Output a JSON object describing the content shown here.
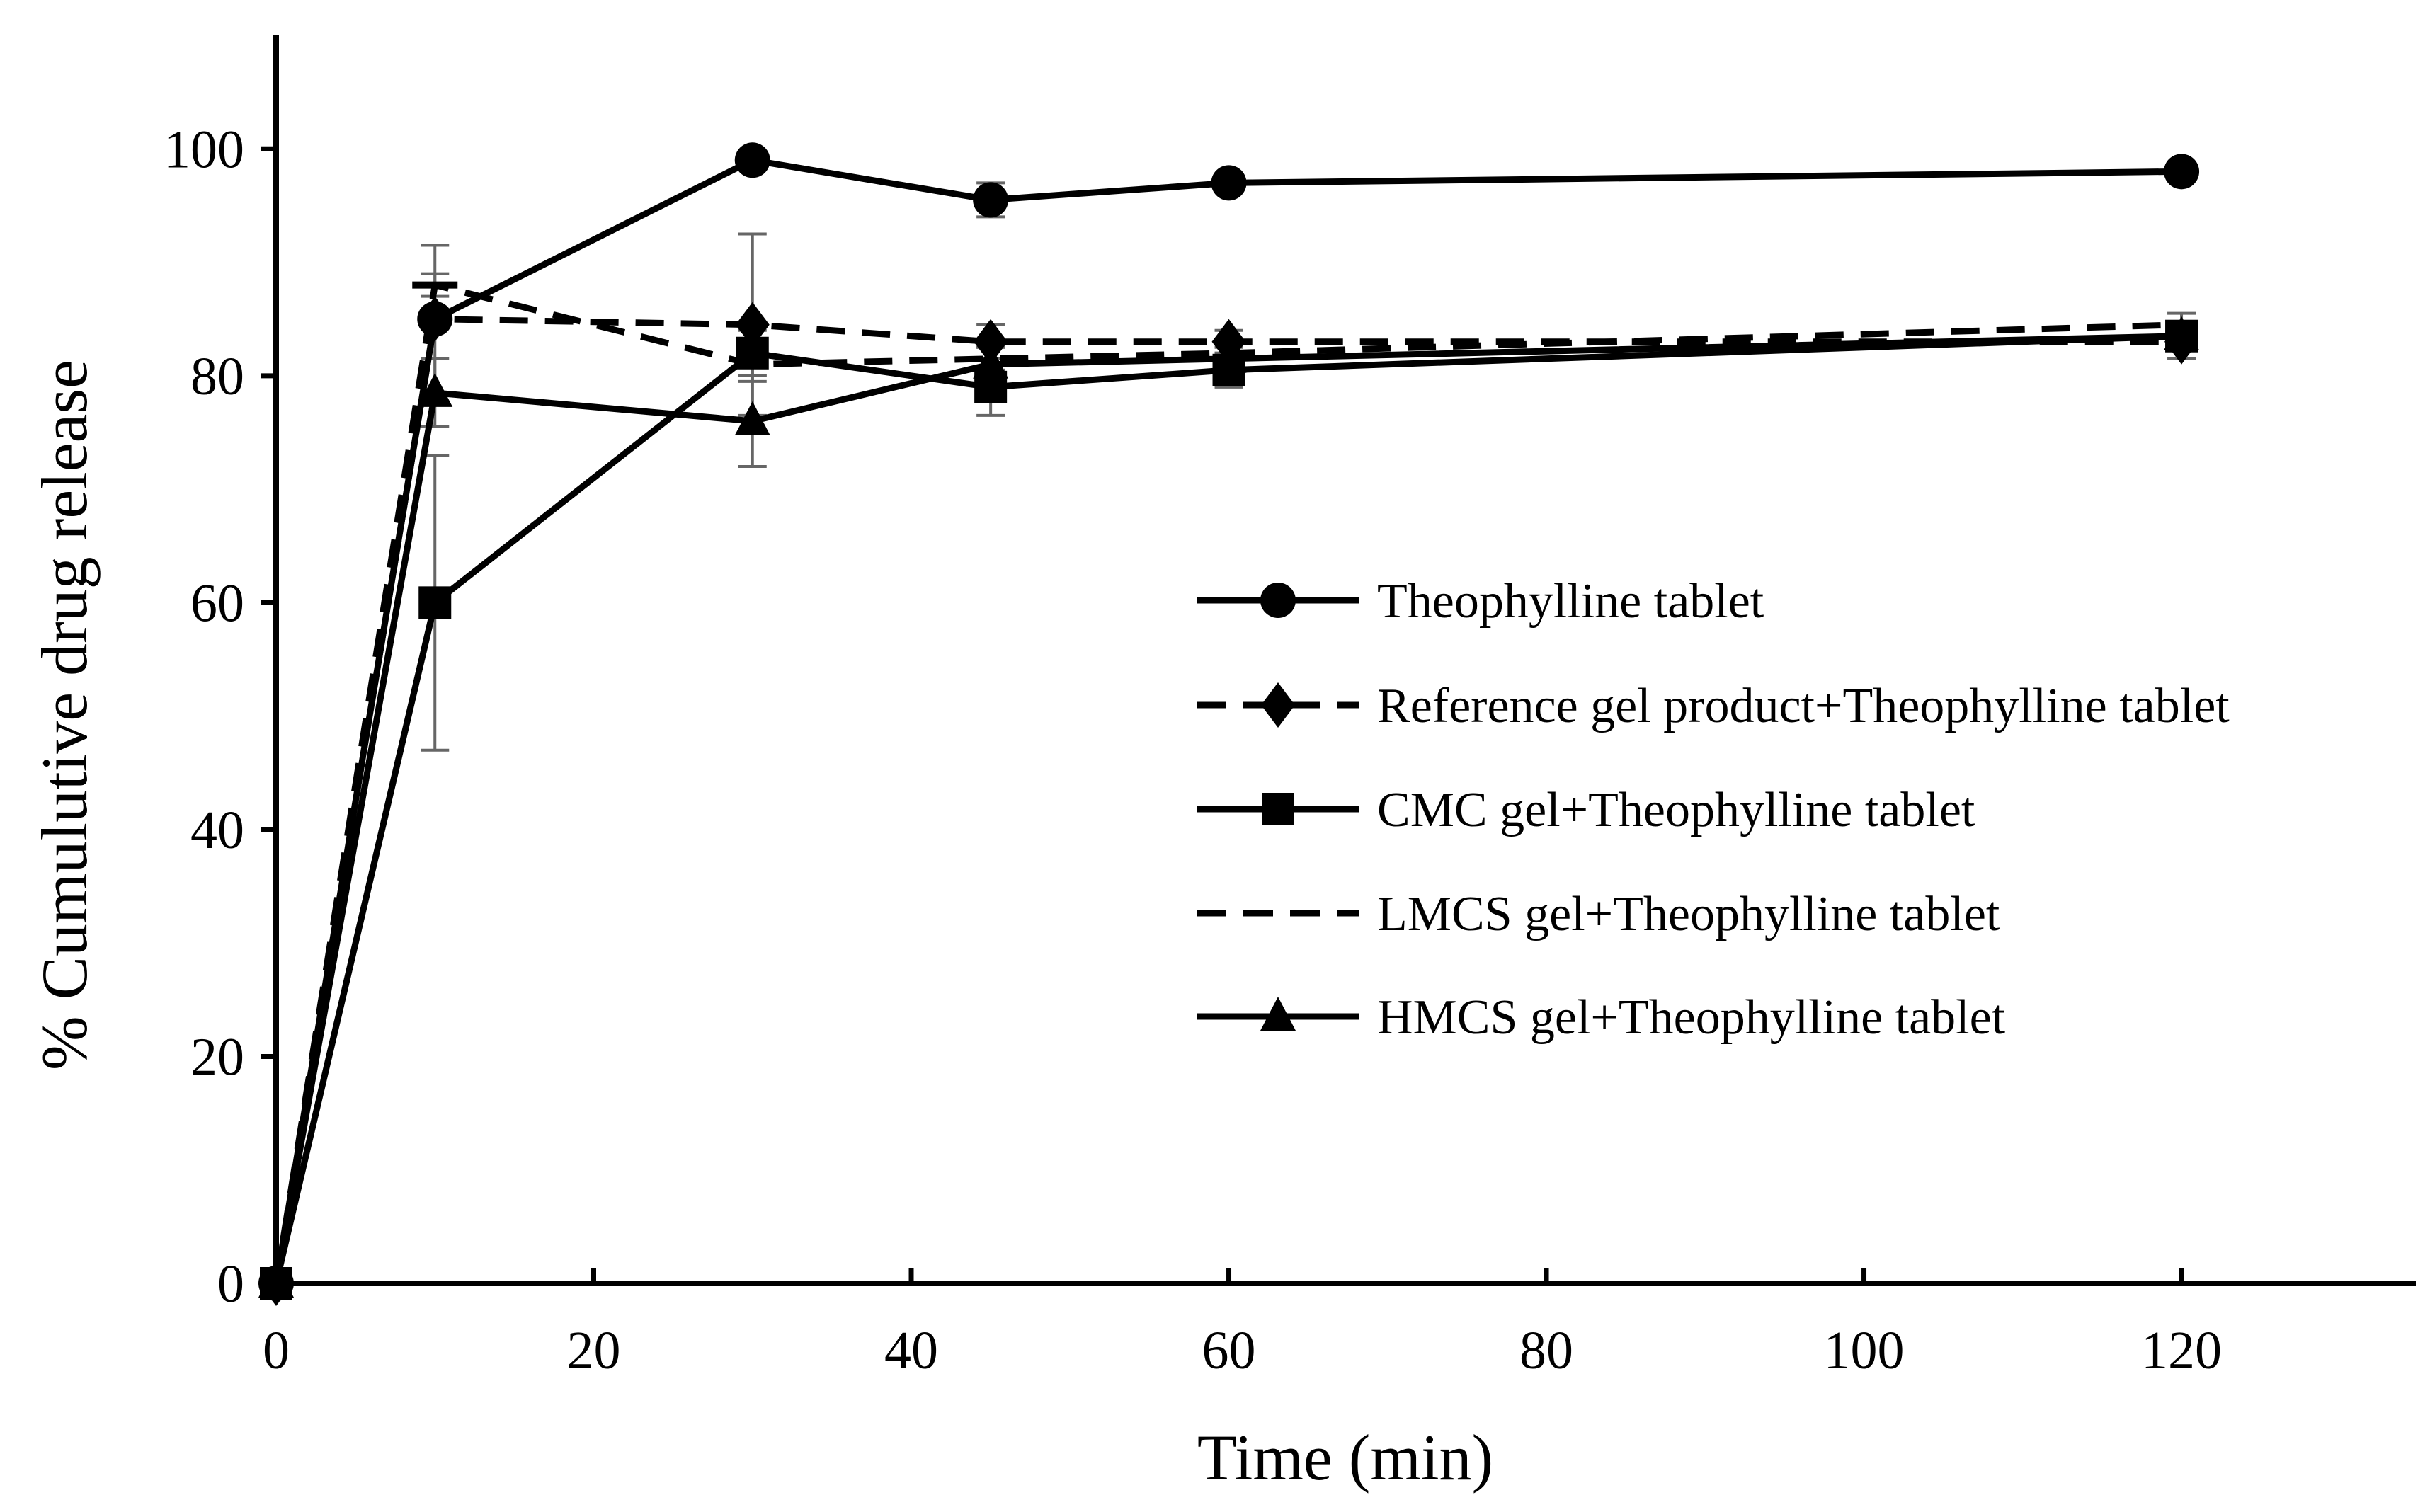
{
  "chart_data": {
    "type": "line",
    "title": "",
    "xlabel": "Time (min)",
    "ylabel": "% Cumulutive drug release",
    "xlim": [
      0,
      134
    ],
    "ylim": [
      0,
      110
    ],
    "xticks": [
      0,
      20,
      40,
      60,
      80,
      100,
      120
    ],
    "yticks": [
      0,
      20,
      40,
      60,
      80,
      100
    ],
    "grid": false,
    "legend_position": "right-center",
    "series": [
      {
        "name": "Theophylline tablet",
        "marker": "circle",
        "line": "solid",
        "x": [
          0,
          10,
          30,
          45,
          60,
          120
        ],
        "y": [
          0,
          85,
          99,
          95.5,
          97,
          98
        ],
        "err": [
          0,
          0,
          0.8,
          1.5,
          0.8,
          0.5
        ]
      },
      {
        "name": "Reference gel product+Theophylline tablet",
        "marker": "diamond",
        "line": "dashed",
        "x": [
          0,
          10,
          30,
          45,
          60,
          120
        ],
        "y": [
          0,
          85,
          84.5,
          83,
          83,
          83
        ],
        "err": [
          0,
          6.5,
          8,
          1.5,
          1,
          1.5
        ]
      },
      {
        "name": "CMC gel+Theophylline tablet",
        "marker": "square",
        "line": "solid",
        "x": [
          0,
          10,
          30,
          45,
          60,
          120
        ],
        "y": [
          0,
          60,
          82,
          79,
          80.5,
          83.5
        ],
        "err": [
          0,
          13,
          2,
          2.5,
          1.5,
          1
        ]
      },
      {
        "name": "LMCS gel+Theophylline tablet",
        "marker": "none",
        "line": "dashed",
        "x": [
          0,
          10,
          30,
          45,
          60,
          120
        ],
        "y": [
          0,
          88,
          81,
          81.5,
          82,
          84.5
        ],
        "err": [
          0,
          1,
          1.5,
          1,
          1,
          1
        ]
      },
      {
        "name": "HMCS gel+Theophylline tablet",
        "marker": "triangle",
        "line": "solid",
        "x": [
          0,
          10,
          30,
          45,
          60,
          120
        ],
        "y": [
          0,
          78.5,
          76,
          81,
          81.5,
          83.5
        ],
        "err": [
          0,
          3,
          4,
          1.5,
          1,
          1
        ]
      }
    ]
  }
}
